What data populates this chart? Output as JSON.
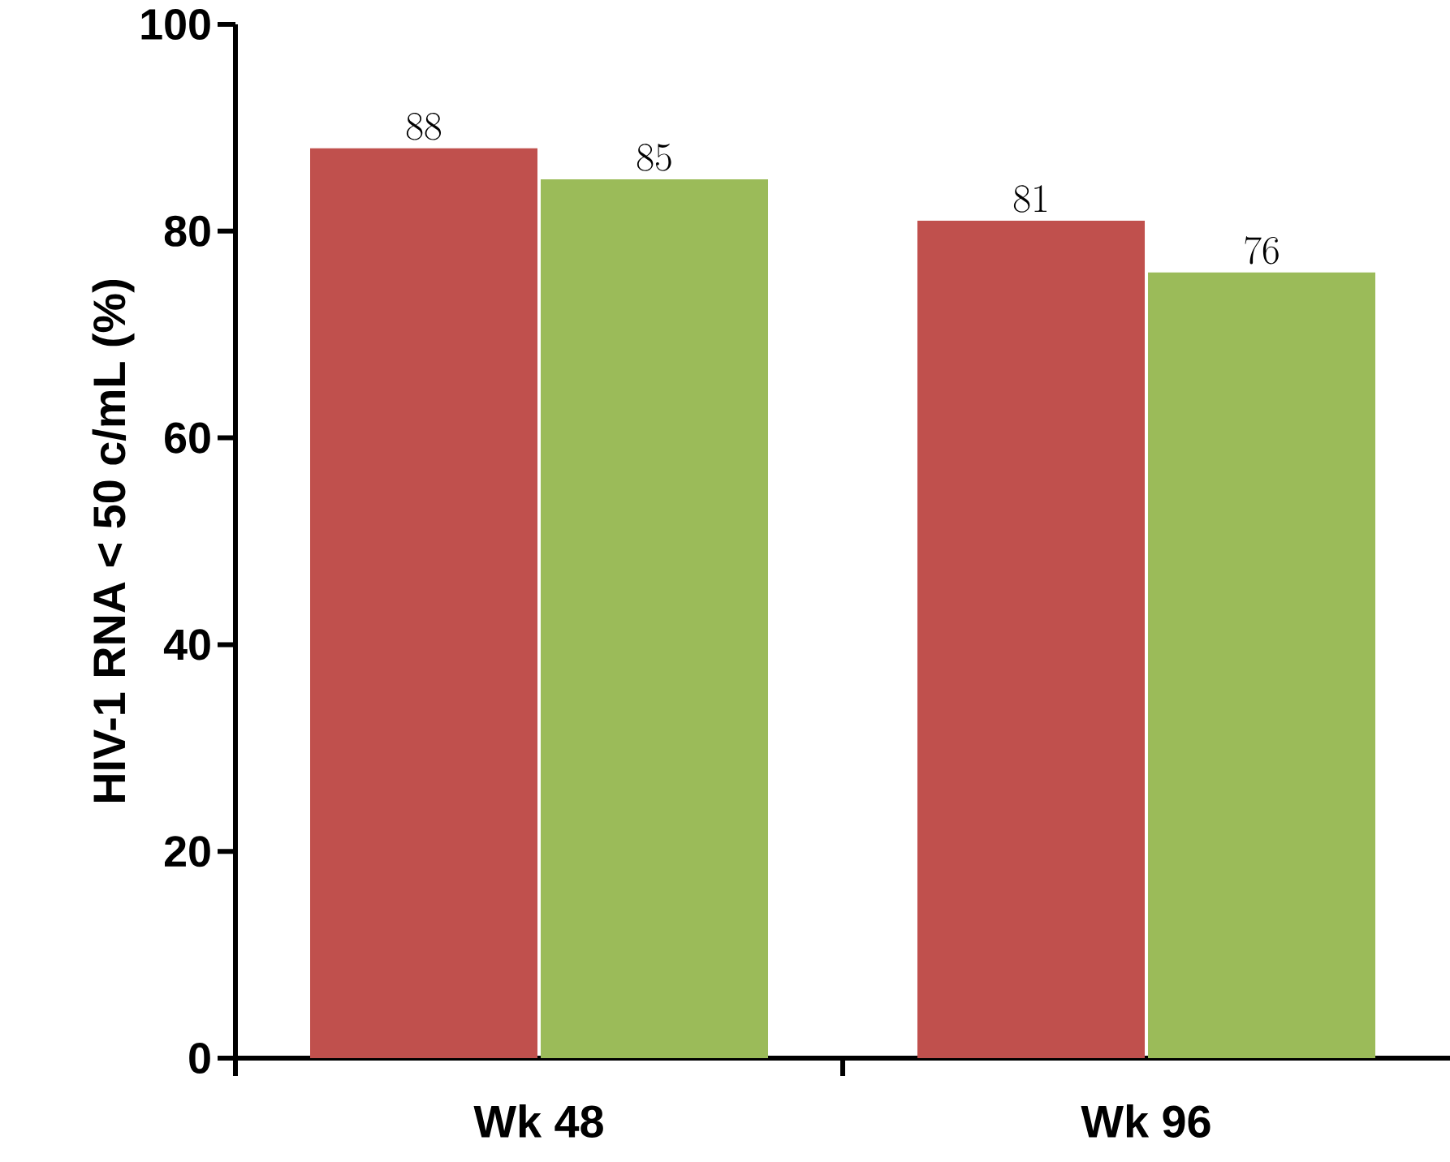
{
  "chart_data": {
    "type": "bar",
    "ylabel": "HIV-1 RNA < 50 c/mL (%)",
    "categories": [
      "Wk 48",
      "Wk 96"
    ],
    "series": [
      {
        "color": "#c0504d",
        "values": [
          88,
          81
        ]
      },
      {
        "color": "#9bbb59",
        "values": [
          85,
          76
        ]
      }
    ],
    "ylim": [
      0,
      100
    ],
    "yticks": [
      0,
      20,
      40,
      60,
      80,
      100
    ],
    "data_labels": true
  }
}
